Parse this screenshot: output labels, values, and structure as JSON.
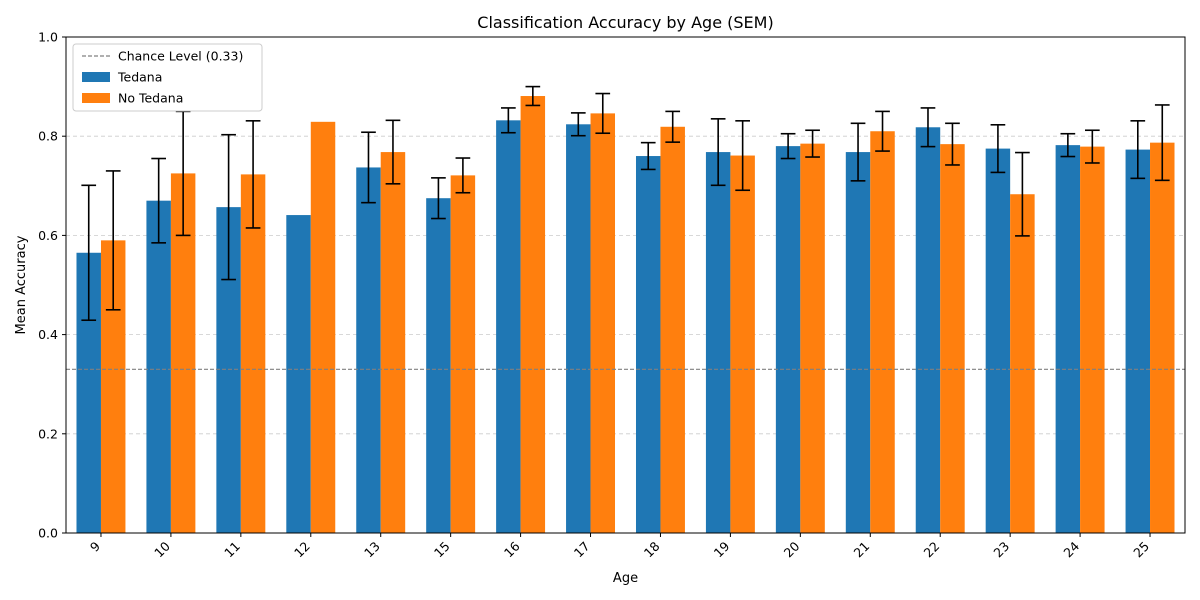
{
  "chart_data": {
    "type": "bar",
    "title": "Classification Accuracy by Age (SEM)",
    "xlabel": "Age",
    "ylabel": "Mean Accuracy",
    "ylim": [
      0,
      1.0
    ],
    "yticks": [
      "0.0",
      "0.2",
      "0.4",
      "0.6",
      "0.8",
      "1.0"
    ],
    "grid": "y-dashed",
    "legend_position": "top-left",
    "categories": [
      "9",
      "10",
      "11",
      "12",
      "13",
      "15",
      "16",
      "17",
      "18",
      "19",
      "20",
      "21",
      "22",
      "23",
      "24",
      "25"
    ],
    "series": [
      {
        "name": "Tedana",
        "color": "#1f77b4",
        "values": [
          0.565,
          0.67,
          0.657,
          0.641,
          0.737,
          0.675,
          0.832,
          0.824,
          0.76,
          0.768,
          0.78,
          0.768,
          0.818,
          0.775,
          0.782,
          0.773
        ],
        "errors": [
          0.136,
          0.085,
          0.146,
          null,
          0.071,
          0.041,
          0.025,
          0.023,
          0.027,
          0.067,
          0.025,
          0.058,
          0.039,
          0.048,
          0.023,
          0.058
        ]
      },
      {
        "name": "No Tedana",
        "color": "#ff7f0e",
        "values": [
          0.59,
          0.725,
          0.723,
          0.829,
          0.768,
          0.721,
          0.881,
          0.846,
          0.819,
          0.761,
          0.785,
          0.81,
          0.784,
          0.683,
          0.779,
          0.787
        ],
        "errors": [
          0.14,
          0.125,
          0.108,
          null,
          0.064,
          0.035,
          0.019,
          0.04,
          0.031,
          0.07,
          0.027,
          0.04,
          0.042,
          0.084,
          0.033,
          0.076
        ]
      }
    ],
    "reference_line": {
      "label": "Chance Level (0.33)",
      "value": 0.33,
      "color": "#808080"
    }
  }
}
